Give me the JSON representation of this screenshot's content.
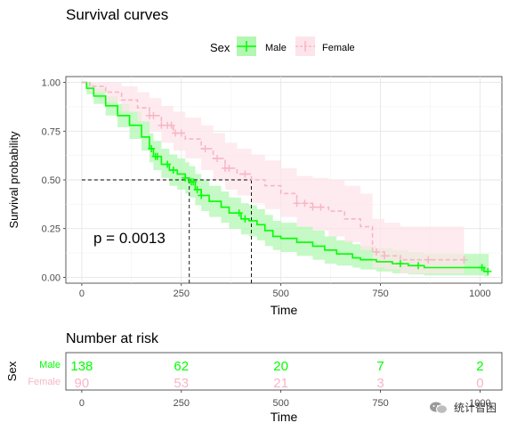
{
  "chart_data": [
    {
      "type": "line",
      "subtype": "kaplan-meier",
      "title": "Survival curves",
      "xlabel": "Time",
      "ylabel": "Survival probability",
      "xlim": [
        -40,
        1055
      ],
      "ylim": [
        -0.03,
        1.03
      ],
      "xticks": [
        0,
        250,
        500,
        750,
        1000
      ],
      "yticks": [
        "0.00",
        "0.25",
        "0.50",
        "0.75",
        "1.00"
      ],
      "grid": true,
      "legend": {
        "title": "Sex",
        "position": "top",
        "entries": [
          "Male",
          "Female"
        ]
      },
      "annotation": "p = 0.0013",
      "median_lines": [
        270,
        426
      ],
      "series": [
        {
          "name": "Male",
          "color": "#00ff00",
          "band_color": "#b2f7b2",
          "x": [
            0,
            12,
            30,
            60,
            90,
            120,
            150,
            170,
            180,
            200,
            220,
            240,
            260,
            270,
            285,
            300,
            320,
            350,
            370,
            400,
            420,
            440,
            460,
            480,
            500,
            540,
            580,
            610,
            640,
            680,
            700,
            740,
            780,
            820,
            860,
            900,
            960,
            1010,
            1022
          ],
          "y": [
            1.0,
            0.97,
            0.93,
            0.88,
            0.83,
            0.78,
            0.72,
            0.66,
            0.62,
            0.58,
            0.55,
            0.53,
            0.51,
            0.49,
            0.45,
            0.42,
            0.39,
            0.36,
            0.33,
            0.3,
            0.29,
            0.27,
            0.24,
            0.21,
            0.2,
            0.18,
            0.16,
            0.14,
            0.12,
            0.1,
            0.09,
            0.08,
            0.07,
            0.06,
            0.05,
            0.05,
            0.05,
            0.03,
            0.03
          ],
          "lower": [
            1.0,
            0.94,
            0.89,
            0.83,
            0.77,
            0.71,
            0.65,
            0.59,
            0.55,
            0.51,
            0.47,
            0.45,
            0.43,
            0.41,
            0.37,
            0.34,
            0.31,
            0.28,
            0.25,
            0.22,
            0.21,
            0.19,
            0.16,
            0.14,
            0.13,
            0.11,
            0.09,
            0.07,
            0.06,
            0.05,
            0.04,
            0.03,
            0.02,
            0.015,
            0.01,
            0.01,
            0.01,
            0.005,
            0.005
          ],
          "upper": [
            1.0,
            1.0,
            0.97,
            0.93,
            0.89,
            0.85,
            0.8,
            0.74,
            0.7,
            0.66,
            0.63,
            0.61,
            0.59,
            0.57,
            0.53,
            0.5,
            0.47,
            0.44,
            0.41,
            0.38,
            0.37,
            0.35,
            0.32,
            0.29,
            0.28,
            0.26,
            0.24,
            0.21,
            0.19,
            0.17,
            0.16,
            0.15,
            0.14,
            0.13,
            0.12,
            0.12,
            0.12,
            0.12,
            0.12
          ],
          "censored_x": [
            175,
            185,
            190,
            215,
            230,
            260,
            275,
            280,
            290,
            300,
            395,
            410,
            800,
            845,
            1005,
            1020
          ],
          "at_risk": [
            "138",
            "62",
            "20",
            "7",
            "2"
          ]
        },
        {
          "name": "Female",
          "color": "#f7b6c6",
          "band_color": "#fde4ea",
          "x": [
            0,
            20,
            60,
            100,
            140,
            170,
            200,
            230,
            260,
            300,
            330,
            360,
            390,
            426,
            460,
            500,
            540,
            580,
            620,
            660,
            700,
            730,
            760,
            800,
            960
          ],
          "y": [
            1.0,
            0.98,
            0.95,
            0.91,
            0.87,
            0.83,
            0.78,
            0.74,
            0.71,
            0.66,
            0.61,
            0.56,
            0.53,
            0.5,
            0.47,
            0.43,
            0.38,
            0.36,
            0.34,
            0.3,
            0.26,
            0.13,
            0.11,
            0.09,
            0.09
          ],
          "lower": [
            1.0,
            0.95,
            0.9,
            0.85,
            0.8,
            0.75,
            0.69,
            0.65,
            0.61,
            0.55,
            0.5,
            0.45,
            0.42,
            0.38,
            0.35,
            0.31,
            0.26,
            0.24,
            0.21,
            0.18,
            0.14,
            0.05,
            0.04,
            0.02,
            0.02
          ],
          "upper": [
            1.0,
            1.0,
            1.0,
            0.98,
            0.95,
            0.92,
            0.88,
            0.85,
            0.82,
            0.78,
            0.74,
            0.69,
            0.66,
            0.63,
            0.6,
            0.56,
            0.52,
            0.51,
            0.5,
            0.47,
            0.43,
            0.3,
            0.28,
            0.26,
            0.26
          ],
          "censored_x": [
            170,
            180,
            200,
            215,
            225,
            235,
            250,
            310,
            340,
            360,
            370,
            410,
            540,
            560,
            580,
            600,
            740,
            760,
            870,
            960
          ],
          "at_risk": [
            "90",
            "53",
            "21",
            "3",
            "0"
          ]
        }
      ]
    },
    {
      "type": "table",
      "title": "Number at risk",
      "xlabel": "Time",
      "ylabel": "Sex",
      "xticks": [
        0,
        250,
        500,
        750,
        1000
      ],
      "row_labels": [
        "Male",
        "Female"
      ]
    }
  ],
  "watermark": {
    "text": "统计智困"
  }
}
